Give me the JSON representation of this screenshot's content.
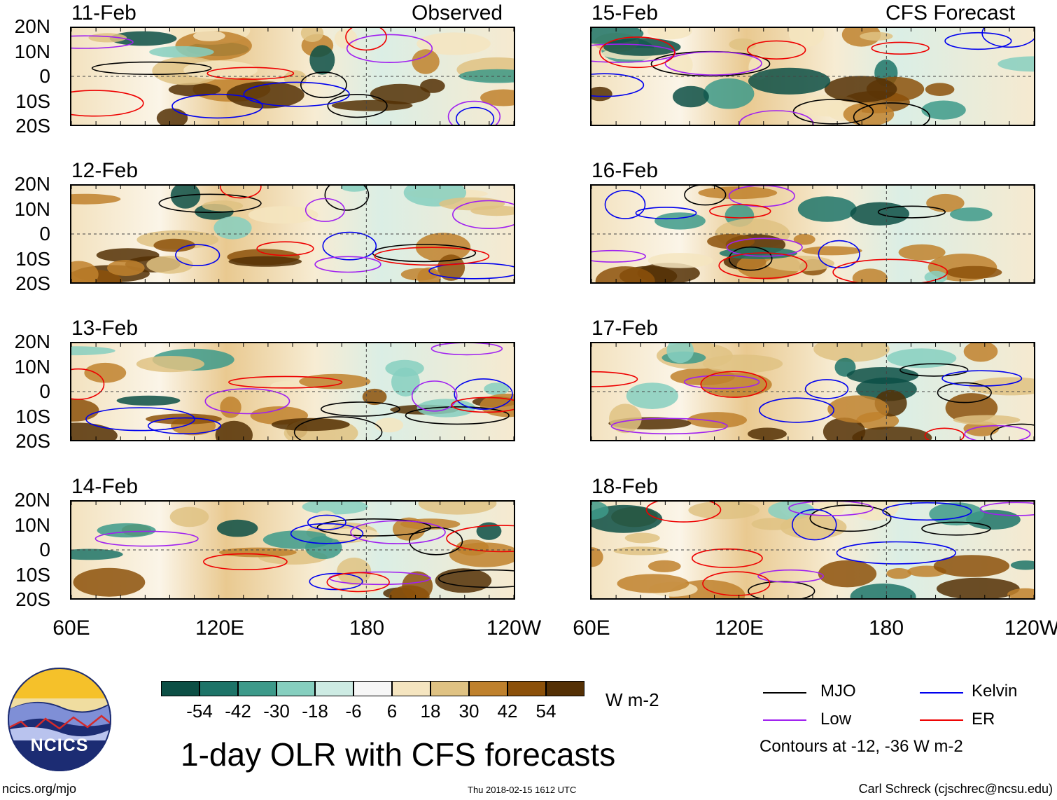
{
  "header": {
    "left_title": "Observed",
    "right_title": "CFS Forecast"
  },
  "panels": {
    "observed": [
      "11-Feb",
      "12-Feb",
      "13-Feb",
      "14-Feb"
    ],
    "forecast": [
      "15-Feb",
      "16-Feb",
      "17-Feb",
      "18-Feb"
    ]
  },
  "chart_data": {
    "type": "heatmap",
    "title": "1-day OLR with CFS forecasts",
    "subtitle_left": "Observed",
    "subtitle_right": "CFS Forecast",
    "panel_dates": [
      "11-Feb",
      "12-Feb",
      "13-Feb",
      "14-Feb",
      "15-Feb",
      "16-Feb",
      "17-Feb",
      "18-Feb"
    ],
    "y_ticks": [
      "20N",
      "10N",
      "0",
      "10S",
      "20S"
    ],
    "x_ticks": [
      "60E",
      "120E",
      "180",
      "120W"
    ],
    "ylim": [
      -20,
      20
    ],
    "xlim": [
      60,
      240
    ],
    "colorbar": {
      "units": "W m-2",
      "ticks": [
        "-54",
        "-42",
        "-30",
        "-18",
        "-6",
        "6",
        "18",
        "30",
        "42",
        "54"
      ],
      "colors": [
        "#0c4f45",
        "#1d7468",
        "#3d9a8a",
        "#86cfbf",
        "#cdebe3",
        "#f7f7f7",
        "#f5e5c0",
        "#dfc283",
        "#bf812d",
        "#8c510a",
        "#543005"
      ]
    },
    "contours": {
      "levels_text": "Contours at -12, -36 W m-2",
      "series": [
        {
          "name": "MJO",
          "color": "#000000"
        },
        {
          "name": "Kelvin",
          "color": "#0000ee"
        },
        {
          "name": "Low",
          "color": "#a020f0"
        },
        {
          "name": "ER",
          "color": "#ee0000"
        }
      ]
    }
  },
  "footer": {
    "logo_text": "NCICS",
    "url": "ncics.org/mjo",
    "timestamp": "Thu 2018-02-15 1612 UTC",
    "credit": "Carl Schreck (cjschrec@ncsu.edu)"
  }
}
